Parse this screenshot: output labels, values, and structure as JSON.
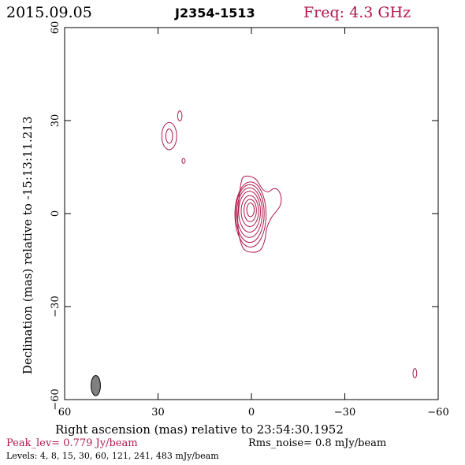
{
  "header": {
    "date": "2015.09.05",
    "source": "J2354-1513",
    "freq": "Freq: 4.3 GHz"
  },
  "chart_data": {
    "type": "contour",
    "xlabel": "Right ascension (mas) relative to 23:54:30.1952",
    "ylabel": "Declination (mas) relative to -15:13:11.213",
    "xlim": [
      60,
      -60
    ],
    "ylim": [
      -60,
      60
    ],
    "xticks": [
      60,
      30,
      0,
      -30,
      -60
    ],
    "yticks": [
      60,
      30,
      0,
      -30,
      -60
    ],
    "xtick_labels": [
      "60",
      "30",
      "0",
      "−30",
      "−60"
    ],
    "ytick_labels": [
      "60",
      "30",
      "0",
      "−30",
      "−60"
    ],
    "beam": {
      "x": 50,
      "y": -55.5,
      "major_mas": 6.5,
      "minor_mas": 3,
      "pa_deg": 0
    },
    "core_contours": [
      {
        "cx": 0.3,
        "cy": 1.2,
        "rx": 1.2,
        "ry": 2.2
      },
      {
        "cx": 0.4,
        "cy": 1.0,
        "rx": 2.0,
        "ry": 3.6
      },
      {
        "cx": 0.5,
        "cy": 0.8,
        "rx": 2.8,
        "ry": 5.0
      },
      {
        "cx": 0.6,
        "cy": 0.6,
        "rx": 3.5,
        "ry": 6.6
      },
      {
        "cx": 0.6,
        "cy": 0.3,
        "rx": 4.1,
        "ry": 8.0
      },
      {
        "cx": 0.5,
        "cy": 0.0,
        "rx": 4.6,
        "ry": 9.3
      },
      {
        "cx": 0.3,
        "cy": -0.3,
        "rx": 5.0,
        "ry": 10.5
      }
    ],
    "outer_contour": [
      [
        2.6,
        11.8
      ],
      [
        0.5,
        12.0
      ],
      [
        -1.5,
        11.0
      ],
      [
        -2.8,
        9.0
      ],
      [
        -4.0,
        7.5
      ],
      [
        -5.5,
        7.0
      ],
      [
        -7.0,
        8.0
      ],
      [
        -8.3,
        7.8
      ],
      [
        -9.2,
        6.5
      ],
      [
        -9.6,
        4.5
      ],
      [
        -9.2,
        2.5
      ],
      [
        -8.0,
        0.7
      ],
      [
        -6.5,
        -1.2
      ],
      [
        -5.0,
        -4.5
      ],
      [
        -4.3,
        -8.5
      ],
      [
        -3.0,
        -11.6
      ],
      [
        -0.5,
        -12.5
      ],
      [
        2.4,
        -11.5
      ],
      [
        4.0,
        -7.0
      ],
      [
        4.4,
        -2.0
      ],
      [
        4.2,
        2.0
      ],
      [
        3.8,
        6.0
      ],
      [
        3.4,
        9.5
      ]
    ],
    "components": [
      {
        "cx": 26.4,
        "cy": 25.0,
        "rx": 2.4,
        "ry": 4.4
      },
      {
        "cx": 26.4,
        "cy": 25.0,
        "rx": 1.1,
        "ry": 2.3
      },
      {
        "cx": 23.0,
        "cy": 31.5,
        "rx": 0.7,
        "ry": 1.6
      },
      {
        "cx": 21.8,
        "cy": 17.0,
        "rx": 0.5,
        "ry": 0.8
      },
      {
        "cx": -52.5,
        "cy": -51.5,
        "rx": 0.6,
        "ry": 1.5
      }
    ]
  },
  "footer": {
    "peak": "Peak_lev=  0.779 Jy/beam",
    "rms": "Rms_noise=   0.8 mJy/beam",
    "levels": "Levels:   4,   8,  15,  30,  60, 121, 241, 483 mJy/beam"
  },
  "colors": {
    "contour": "#b0194a",
    "axis": "#000000",
    "beam_fill": "#808080"
  }
}
